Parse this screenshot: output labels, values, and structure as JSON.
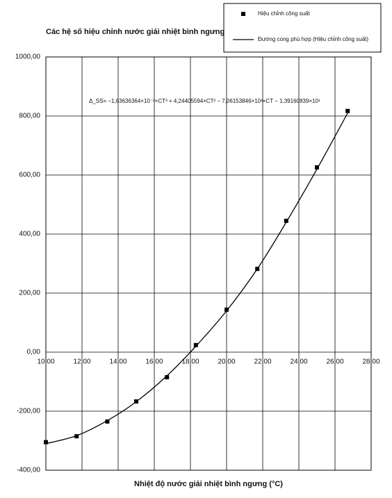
{
  "chart_data": {
    "type": "scatter",
    "y_axis_label": "Các hệ số hiệu chỉnh nước giải nhiệt bình ngưng",
    "x_axis_label": "Nhiệt độ nước giải nhiệt bình ngưng (°C)",
    "annotation": "Δ_SS= −1,63636364×10⁻²×CT³ + 4,24405594×CT² − 7,06153846×10¹×CT − 1,39160839×10¹",
    "xlim": [
      10,
      28
    ],
    "xticks": [
      {
        "value": 10,
        "label": "10,00"
      },
      {
        "value": 12,
        "label": "12,00"
      },
      {
        "value": 14,
        "label": "14,00"
      },
      {
        "value": 16,
        "label": "16,00"
      },
      {
        "value": 18,
        "label": "18,00"
      },
      {
        "value": 20,
        "label": "20,00"
      },
      {
        "value": 22,
        "label": "22,00"
      },
      {
        "value": 24,
        "label": "24,00"
      },
      {
        "value": 26,
        "label": "26,00"
      },
      {
        "value": 28,
        "label": "28,00"
      }
    ],
    "ylim": [
      -400,
      1000
    ],
    "yticks": [
      {
        "value": -400,
        "label": "-400,00"
      },
      {
        "value": -200,
        "label": "-200,00"
      },
      {
        "value": 0,
        "label": "0,00"
      },
      {
        "value": 200,
        "label": "200,00"
      },
      {
        "value": 400,
        "label": "400,00"
      },
      {
        "value": 600,
        "label": "600,00"
      },
      {
        "value": 800,
        "label": "800,00"
      },
      {
        "value": 1000,
        "label": "1000,00"
      }
    ],
    "grid": true,
    "legend": "top-right",
    "series": [
      {
        "name": "Hiệu chỉnh công suất",
        "type": "scatter",
        "color": "#000000",
        "x": [
          10.0,
          11.7,
          13.4,
          15.0,
          16.7,
          18.3,
          20.0,
          21.7,
          23.3,
          25.0,
          26.7
        ],
        "values": [
          -305,
          -285,
          -235,
          -167,
          -85,
          24,
          144,
          282,
          445,
          626,
          817
        ]
      },
      {
        "name": "Đường cong phù hợp (Hiệu chỉnh công suất)",
        "type": "line",
        "color": "#000000",
        "x": [
          10.0,
          11.7,
          13.4,
          15.0,
          16.7,
          18.3,
          20.0,
          21.7,
          23.3,
          25.0,
          26.7
        ],
        "values": [
          -310,
          -283,
          -232,
          -168,
          -80,
          20,
          140,
          282,
          440,
          620,
          810
        ]
      }
    ]
  }
}
